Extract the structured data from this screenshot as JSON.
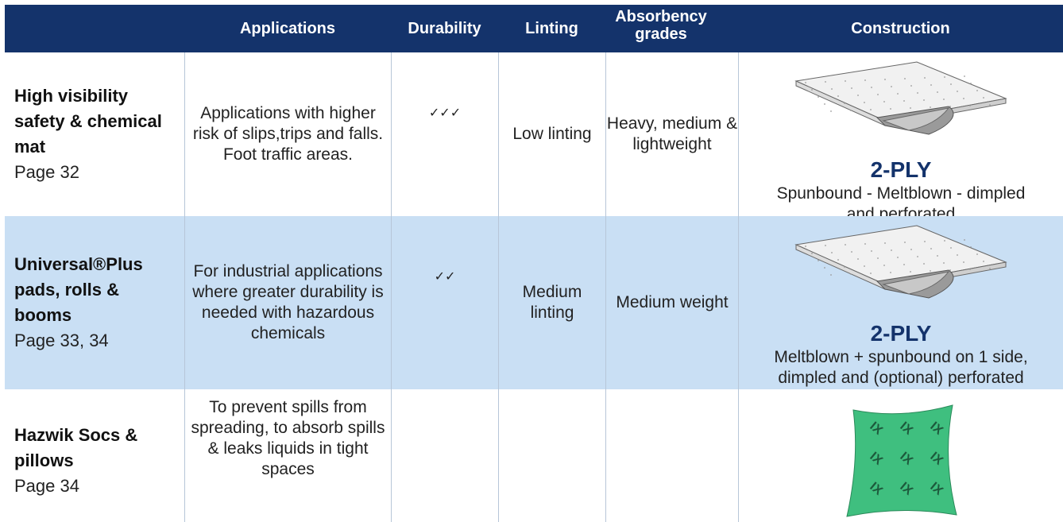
{
  "table": {
    "headers": [
      "Applications",
      "Durability",
      "Linting",
      "Absorbency grades",
      "Construction"
    ],
    "rows": [
      {
        "product": "High visibility safety & chemical mat",
        "page": "Page 32",
        "applications": "Applications with higher risk of slips,trips and falls. Foot traffic areas.",
        "durability": "✓✓✓",
        "linting": "Low linting",
        "absorbency": "Heavy, medium & lightweight",
        "construction_label": "2-PLY",
        "construction": "Spunbound - Meltblown - dimpled and perforated"
      },
      {
        "product": "Universal®Plus pads, rolls & booms",
        "page": "Page 33, 34",
        "applications": "For industrial applications where greater durability is needed with hazardous chemicals",
        "durability": "✓✓",
        "linting": "Medium linting",
        "absorbency": "Medium weight",
        "construction_label": "2-PLY",
        "construction": "Meltblown + spunbound on 1 side, dimpled and (optional) perforated"
      },
      {
        "product": "Hazwik Socs & pillows",
        "page": "Page 34",
        "applications": "To prevent spills from spreading, to absorb spills & leaks liquids in tight spaces"
      }
    ]
  }
}
